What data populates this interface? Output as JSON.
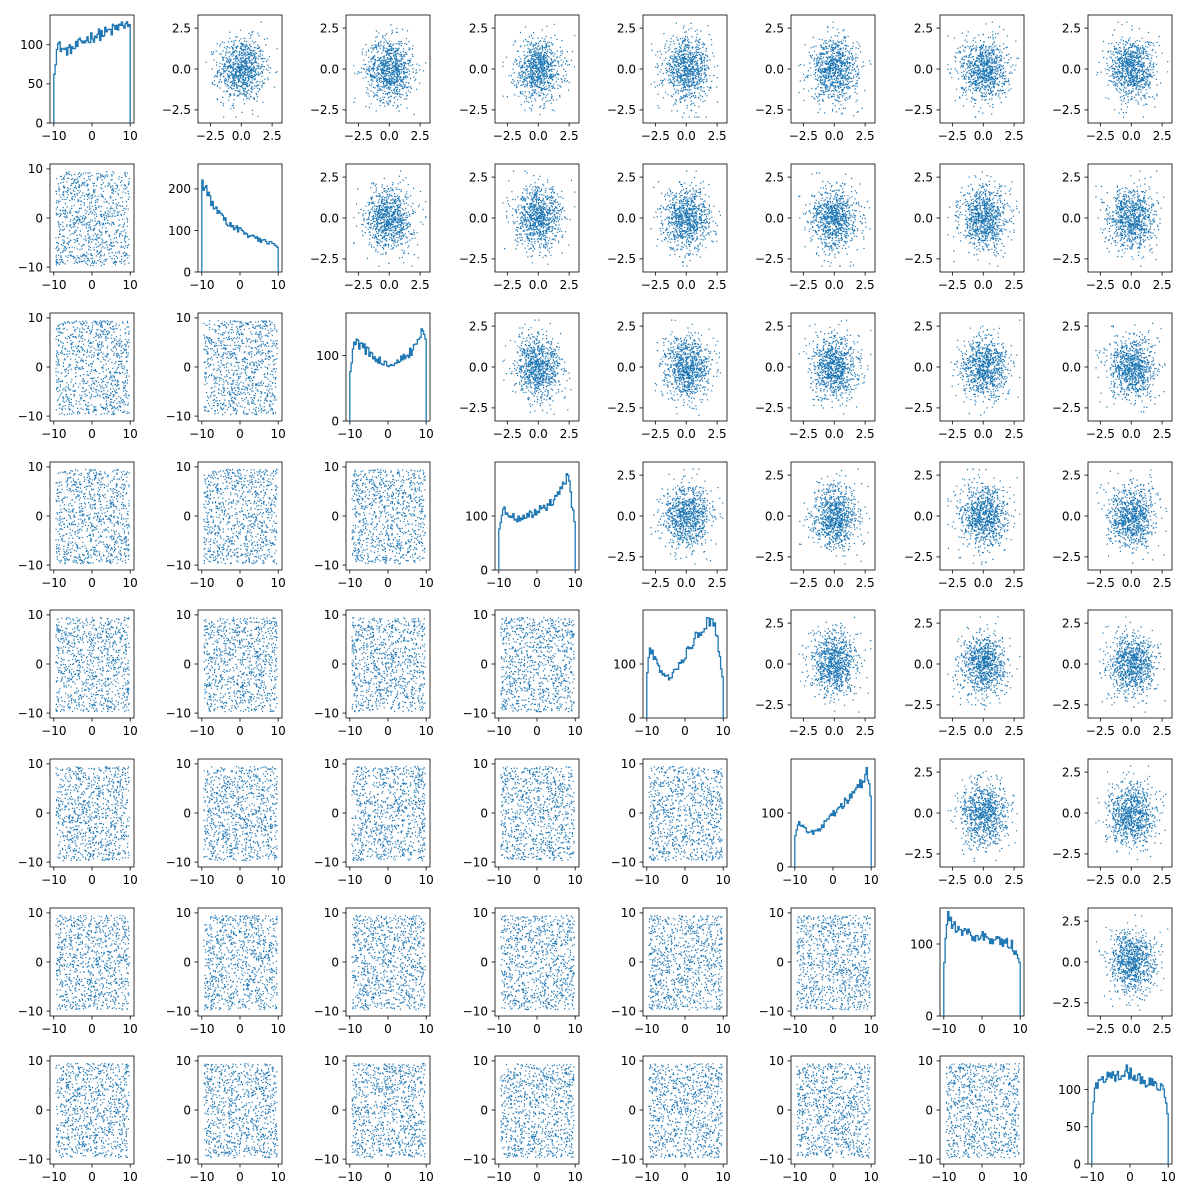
{
  "chart_data": {
    "type": "pairplot",
    "grid_rows": 8,
    "grid_cols": 8,
    "color": "#1f77b4",
    "diagonal": "histogram",
    "off_diagonal": "scatter",
    "lower_triangle": {
      "description": "uniform scatter of variable pairs",
      "xlim": [
        -11,
        11
      ],
      "ylim": [
        -11,
        11
      ],
      "x_ticks": [
        -10,
        0,
        10
      ],
      "y_ticks": [
        -10,
        0,
        10
      ],
      "x_tick_labels": [
        "−10",
        "0",
        "10"
      ],
      "y_tick_labels": [
        "−10",
        "0",
        "10"
      ]
    },
    "upper_triangle": {
      "description": "gaussian scatter",
      "xlim": [
        -3.5,
        3.3
      ],
      "ylim": [
        -3.3,
        3.3
      ],
      "x_ticks": [
        -2.5,
        0.0,
        2.5
      ],
      "y_ticks": [
        -2.5,
        0.0,
        2.5
      ],
      "x_tick_labels": [
        "−2.5",
        "0.0",
        "2.5"
      ],
      "y_tick_labels": [
        "−2.5",
        "0.0",
        "2.5"
      ]
    },
    "diagonal_histograms": [
      {
        "xlim": [
          -11,
          11
        ],
        "ylim": [
          0,
          138
        ],
        "x_ticks": [
          -10,
          0,
          10
        ],
        "x_tick_labels": [
          "−10",
          "0",
          "10"
        ],
        "y_ticks": [
          0,
          50,
          100
        ],
        "y_tick_labels": [
          "0",
          "50",
          "100"
        ],
        "profile": [
          [
            -10,
            60
          ],
          [
            -9,
            100
          ],
          [
            -7,
            92
          ],
          [
            -5,
            95
          ],
          [
            -3,
            102
          ],
          [
            -1,
            108
          ],
          [
            1,
            112
          ],
          [
            3,
            114
          ],
          [
            5,
            118
          ],
          [
            7,
            122
          ],
          [
            9,
            128
          ],
          [
            10,
            118
          ]
        ]
      },
      {
        "xlim": [
          -11,
          11
        ],
        "ylim": [
          0,
          260
        ],
        "x_ticks": [
          -10,
          0,
          10
        ],
        "x_tick_labels": [
          "−10",
          "0",
          "10"
        ],
        "y_ticks": [
          0,
          100,
          200
        ],
        "y_tick_labels": [
          "0",
          "100",
          "200"
        ],
        "profile": [
          [
            -10,
            220
          ],
          [
            -9,
            200
          ],
          [
            -7,
            160
          ],
          [
            -5,
            135
          ],
          [
            -3,
            118
          ],
          [
            -1,
            105
          ],
          [
            1,
            95
          ],
          [
            3,
            85
          ],
          [
            5,
            78
          ],
          [
            7,
            72
          ],
          [
            9,
            70
          ],
          [
            10,
            55
          ]
        ]
      },
      {
        "xlim": [
          -11,
          11
        ],
        "ylim": [
          0,
          165
        ],
        "x_ticks": [
          -10,
          0,
          10
        ],
        "x_tick_labels": [
          "−10",
          "0",
          "10"
        ],
        "y_ticks": [
          0,
          100
        ],
        "y_tick_labels": [
          "0",
          "100"
        ],
        "profile": [
          [
            -10,
            60
          ],
          [
            -9,
            125
          ],
          [
            -7,
            115
          ],
          [
            -5,
            105
          ],
          [
            -3,
            95
          ],
          [
            -1,
            88
          ],
          [
            1,
            85
          ],
          [
            3,
            92
          ],
          [
            5,
            100
          ],
          [
            7,
            112
          ],
          [
            9,
            145
          ],
          [
            10,
            130
          ]
        ]
      },
      {
        "xlim": [
          -11,
          11
        ],
        "ylim": [
          0,
          200
        ],
        "x_ticks": [
          -10,
          0,
          10
        ],
        "x_tick_labels": [
          "−10",
          "0",
          "10"
        ],
        "y_ticks": [
          0,
          100
        ],
        "y_tick_labels": [
          "0",
          "100"
        ],
        "profile": [
          [
            -10,
            70
          ],
          [
            -9,
            112
          ],
          [
            -7,
            100
          ],
          [
            -5,
            95
          ],
          [
            -3,
            98
          ],
          [
            -1,
            105
          ],
          [
            1,
            112
          ],
          [
            3,
            120
          ],
          [
            5,
            135
          ],
          [
            7,
            160
          ],
          [
            8,
            180
          ],
          [
            10,
            80
          ]
        ]
      },
      {
        "xlim": [
          -11,
          11
        ],
        "ylim": [
          0,
          200
        ],
        "x_ticks": [
          -10,
          0,
          10
        ],
        "x_tick_labels": [
          "−10",
          "0",
          "10"
        ],
        "y_ticks": [
          0,
          100
        ],
        "y_tick_labels": [
          "0",
          "100"
        ],
        "profile": [
          [
            -10,
            80
          ],
          [
            -9,
            130
          ],
          [
            -8,
            110
          ],
          [
            -6,
            80
          ],
          [
            -4,
            75
          ],
          [
            -2,
            90
          ],
          [
            0,
            115
          ],
          [
            2,
            140
          ],
          [
            4,
            160
          ],
          [
            6,
            175
          ],
          [
            8,
            170
          ],
          [
            10,
            70
          ]
        ]
      },
      {
        "xlim": [
          -11,
          11
        ],
        "ylim": [
          0,
          200
        ],
        "x_ticks": [
          -10,
          0,
          10
        ],
        "x_tick_labels": [
          "−10",
          "0",
          "10"
        ],
        "y_ticks": [
          0,
          100
        ],
        "y_tick_labels": [
          "0",
          "100"
        ],
        "profile": [
          [
            -10,
            50
          ],
          [
            -9,
            85
          ],
          [
            -7,
            70
          ],
          [
            -5,
            62
          ],
          [
            -3,
            75
          ],
          [
            -1,
            90
          ],
          [
            1,
            105
          ],
          [
            3,
            120
          ],
          [
            5,
            135
          ],
          [
            7,
            150
          ],
          [
            9,
            175
          ],
          [
            10,
            120
          ]
        ]
      },
      {
        "xlim": [
          -11,
          11
        ],
        "ylim": [
          0,
          150
        ],
        "x_ticks": [
          -10,
          0,
          10
        ],
        "x_tick_labels": [
          "−10",
          "0",
          "10"
        ],
        "y_ticks": [
          0,
          100
        ],
        "y_tick_labels": [
          "0",
          "100"
        ],
        "profile": [
          [
            -10,
            60
          ],
          [
            -9,
            145
          ],
          [
            -8,
            128
          ],
          [
            -6,
            120
          ],
          [
            -4,
            115
          ],
          [
            -2,
            112
          ],
          [
            0,
            110
          ],
          [
            2,
            108
          ],
          [
            4,
            105
          ],
          [
            6,
            102
          ],
          [
            8,
            98
          ],
          [
            10,
            70
          ]
        ]
      },
      {
        "xlim": [
          -11,
          11
        ],
        "ylim": [
          0,
          145
        ],
        "x_ticks": [
          -10,
          0,
          10
        ],
        "x_tick_labels": [
          "−10",
          "0",
          "10"
        ],
        "y_ticks": [
          0,
          50,
          100
        ],
        "y_tick_labels": [
          "0",
          "50",
          "100"
        ],
        "profile": [
          [
            -10,
            60
          ],
          [
            -9,
            105
          ],
          [
            -7,
            115
          ],
          [
            -5,
            118
          ],
          [
            -3,
            120
          ],
          [
            -1,
            125
          ],
          [
            1,
            118
          ],
          [
            3,
            112
          ],
          [
            5,
            110
          ],
          [
            7,
            105
          ],
          [
            9,
            100
          ],
          [
            10,
            65
          ]
        ]
      }
    ]
  }
}
